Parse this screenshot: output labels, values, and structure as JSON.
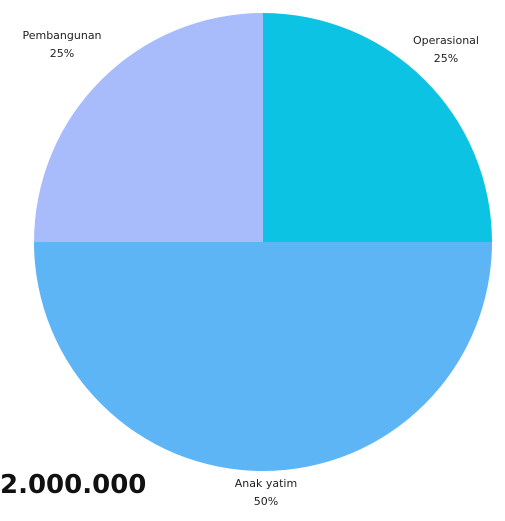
{
  "amount": "2.000.000",
  "chart_data": {
    "type": "pie",
    "title": "",
    "slices": [
      {
        "label": "Operasional",
        "value": 25,
        "percent_label": "25%",
        "color": "#0dc3e4"
      },
      {
        "label": "Anak yatim",
        "value": 50,
        "percent_label": "50%",
        "color": "#5db5f5"
      },
      {
        "label": "Pembangunan",
        "value": 25,
        "percent_label": "25%",
        "color": "#a8bcfb"
      }
    ],
    "start_angle": "12 o'clock",
    "direction": "clockwise",
    "legend": "none"
  }
}
